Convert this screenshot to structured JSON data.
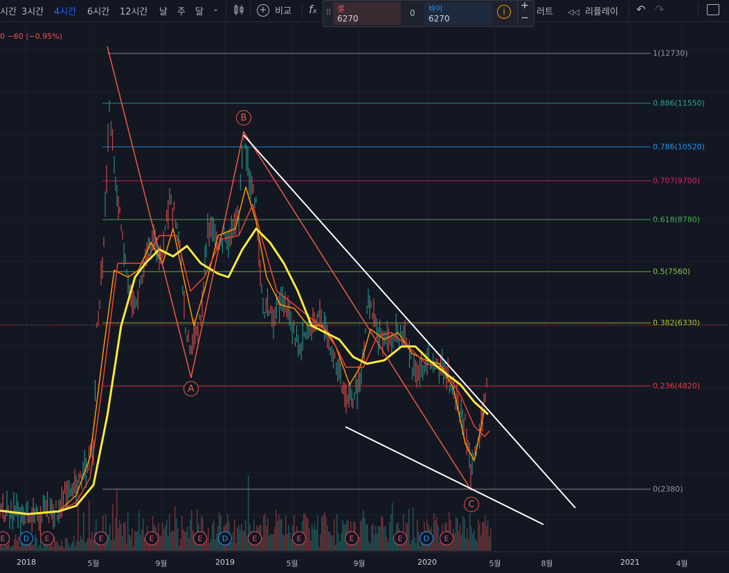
{
  "toolbar": {
    "timeframes": [
      "시간",
      "3시간",
      "4시간",
      "6시간",
      "12시간",
      "날",
      "주",
      "달"
    ],
    "active_timeframe": "4시간",
    "compare_label": "비교",
    "chart_label": "러트",
    "replay_label": "리플레이"
  },
  "trade": {
    "sell_label": "셀",
    "sell_price": "6270",
    "spread": "0",
    "buy_label": "바이",
    "buy_price": "6270",
    "info_icon": "i",
    "plus": "+",
    "minus": "−"
  },
  "price_change": "0  −60 (−0.95%)",
  "fib_levels": [
    {
      "label": "1(12730)",
      "color": "#9598a1"
    },
    {
      "label": "0.886(11550)",
      "color": "#26a69a"
    },
    {
      "label": "0.786(10520)",
      "color": "#2196f3"
    },
    {
      "label": "0.707(9700)",
      "color": "#e91e63"
    },
    {
      "label": "0.618(8780)",
      "color": "#4caf50"
    },
    {
      "label": "0.5(7560)",
      "color": "#8bc34a"
    },
    {
      "label": "0.382(6330)",
      "color": "#b5c234"
    },
    {
      "label": "0.236(4820)",
      "color": "#f23645"
    },
    {
      "label": "0(2380)",
      "color": "#9598a1"
    }
  ],
  "waves": [
    "A",
    "B",
    "C"
  ],
  "events": [
    "E",
    "D",
    "E",
    "E",
    "E",
    "E",
    "D",
    "E",
    "E",
    "E",
    "E",
    "D",
    "E"
  ],
  "date_axis": [
    "2018",
    "5월",
    "9월",
    "2019",
    "5월",
    "9월",
    "2020",
    "5월",
    "8월",
    "2021",
    "4월"
  ],
  "colors": {
    "background": "#131722",
    "trend_red": "#f05a46",
    "trend_white": "#ffffff",
    "ma_yellow": "#ffeb3b",
    "ma_orange": "#ff9800",
    "ma_red": "#f44336"
  }
}
